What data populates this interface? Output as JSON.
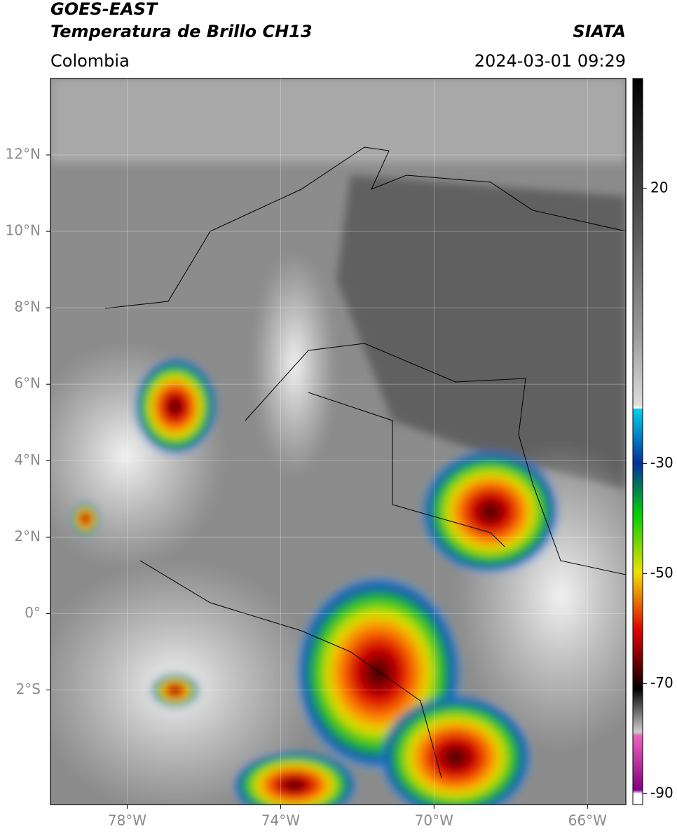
{
  "header": {
    "title": "GOES-EAST",
    "subtitle": "Temperatura de Brillo CH13",
    "region": "Colombia",
    "source": "SIATA",
    "datetime": "2024-03-01 09:29"
  },
  "map": {
    "lonlim": [
      -80,
      -65
    ],
    "latlim": [
      -5,
      14
    ],
    "lat_ticks": [
      {
        "value": 12,
        "label": "12°N"
      },
      {
        "value": 10,
        "label": "10°N"
      },
      {
        "value": 8,
        "label": "8°N"
      },
      {
        "value": 6,
        "label": "6°N"
      },
      {
        "value": 4,
        "label": "4°N"
      },
      {
        "value": 2,
        "label": "2°N"
      },
      {
        "value": 0,
        "label": "0°"
      },
      {
        "value": -2,
        "label": "2°S"
      }
    ],
    "lon_ticks": [
      {
        "value": -78,
        "label": "78°W"
      },
      {
        "value": -74,
        "label": "74°W"
      },
      {
        "value": -70,
        "label": "70°W"
      },
      {
        "value": -66,
        "label": "66°W"
      }
    ]
  },
  "colorbar": {
    "lim": [
      -92,
      40
    ],
    "ticks": [
      20,
      -30,
      -50,
      -70,
      -90
    ]
  }
}
